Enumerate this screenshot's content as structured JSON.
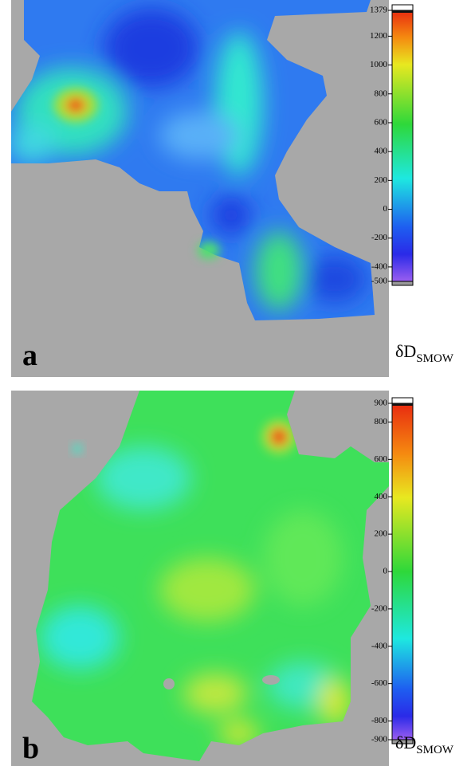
{
  "panels": [
    {
      "label": "a",
      "unit": "δD",
      "unit_sub": "SMOW",
      "colorbar": {
        "ticks": [
          1379,
          1200,
          1000,
          800,
          600,
          400,
          200,
          0,
          -200,
          -400,
          -500
        ]
      }
    },
    {
      "label": "b",
      "unit": "δD",
      "unit_sub": "SMOW",
      "colorbar": {
        "ticks": [
          900,
          800,
          600,
          400,
          200,
          0,
          -200,
          -400,
          -600,
          -800,
          -900
        ]
      }
    }
  ]
}
